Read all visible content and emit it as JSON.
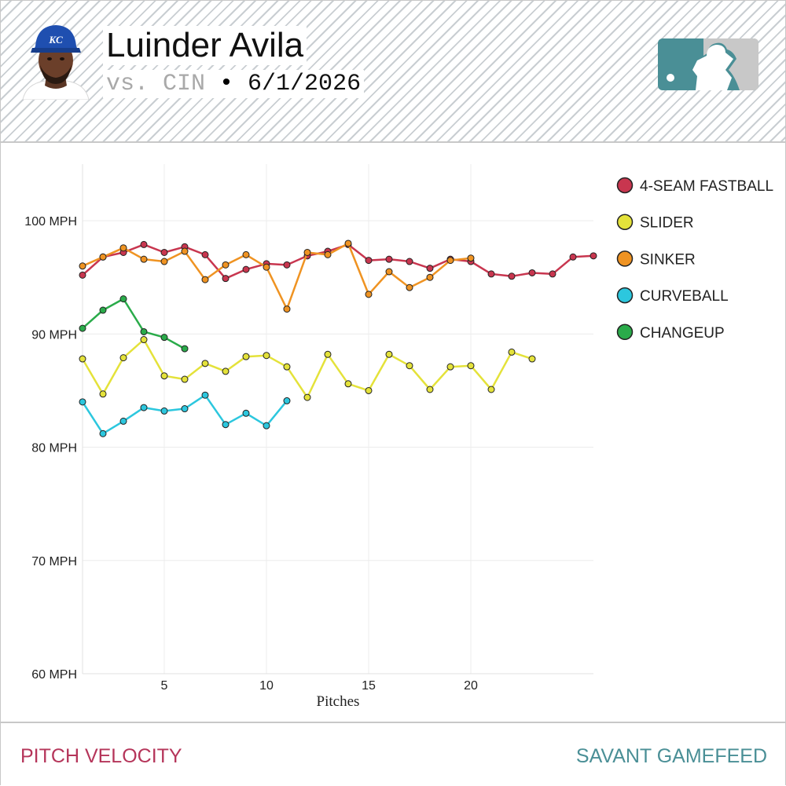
{
  "header": {
    "player_name": "Luinder Avila",
    "opponent": "vs. CIN",
    "separator": " • ",
    "game_date": "6/1/2026",
    "avatar_icon": "player-headshot-kc-cap-icon",
    "logo_icon": "mlb-logo-icon"
  },
  "footer": {
    "left_label": "PITCH VELOCITY",
    "right_label": "SAVANT GAMEFEED"
  },
  "colors": {
    "header_stripe": "#c9ced2",
    "footer_left": "#b5355a",
    "footer_right": "#4a8f96",
    "logo_teal": "#4a8f96",
    "logo_gray": "#c8c8c8"
  },
  "chart_data": {
    "type": "line",
    "xlabel": "Pitches",
    "ylabel": "",
    "xlim": [
      1,
      26
    ],
    "ylim": [
      60,
      105
    ],
    "x_ticks": [
      5,
      10,
      15,
      20
    ],
    "x_tick_labels": [
      "5",
      "10",
      "15",
      "20"
    ],
    "y_ticks": [
      60,
      70,
      80,
      90,
      100
    ],
    "y_tick_labels": [
      "60 MPH",
      "70 MPH",
      "80 MPH",
      "90 MPH",
      "100 MPH"
    ],
    "grid": true,
    "legend_position": "right",
    "series": [
      {
        "name": "4-SEAM FASTBALL",
        "color": "#c8364f",
        "x": [
          1,
          2,
          3,
          4,
          5,
          6,
          7,
          8,
          9,
          10,
          11,
          12,
          13,
          14,
          15,
          16,
          17,
          18,
          19,
          20,
          21,
          22,
          23,
          24,
          25,
          26
        ],
        "values": [
          95.2,
          96.8,
          97.2,
          97.9,
          97.2,
          97.7,
          97.0,
          94.9,
          95.7,
          96.2,
          96.1,
          96.9,
          97.3,
          97.9,
          96.5,
          96.6,
          96.4,
          95.8,
          96.6,
          96.4,
          95.3,
          95.1,
          95.4,
          95.3,
          96.8,
          96.9
        ]
      },
      {
        "name": "SLIDER",
        "color": "#e4e23a",
        "x": [
          1,
          2,
          3,
          4,
          5,
          6,
          7,
          8,
          9,
          10,
          11,
          12,
          13,
          14,
          15,
          16,
          17,
          18,
          19,
          20,
          21,
          22,
          23
        ],
        "values": [
          87.8,
          84.7,
          87.9,
          89.5,
          86.3,
          86.0,
          87.4,
          86.7,
          88.0,
          88.1,
          87.1,
          84.4,
          88.2,
          85.6,
          85.0,
          88.2,
          87.2,
          85.1,
          87.1,
          87.2,
          85.1,
          88.4,
          87.8
        ]
      },
      {
        "name": "SINKER",
        "color": "#ef9322",
        "x": [
          1,
          2,
          3,
          4,
          5,
          6,
          7,
          8,
          9,
          10,
          11,
          12,
          13,
          14,
          15,
          16,
          17,
          18,
          19,
          20
        ],
        "values": [
          96.0,
          96.8,
          97.6,
          96.6,
          96.4,
          97.3,
          94.8,
          96.1,
          97.0,
          95.9,
          92.2,
          97.2,
          97.0,
          98.0,
          93.5,
          95.5,
          94.1,
          95.0,
          96.5,
          96.7
        ]
      },
      {
        "name": "CURVEBALL",
        "color": "#2cc7de",
        "x": [
          1,
          2,
          3,
          4,
          5,
          6,
          7,
          8,
          9,
          10,
          11
        ],
        "values": [
          84.0,
          81.2,
          82.3,
          83.5,
          83.2,
          83.4,
          84.6,
          82.0,
          83.0,
          81.9,
          84.1
        ]
      },
      {
        "name": "CHANGEUP",
        "color": "#2aab4a",
        "x": [
          1,
          2,
          3,
          4,
          5,
          6
        ],
        "values": [
          90.5,
          92.1,
          93.1,
          90.2,
          89.7,
          88.7
        ]
      }
    ]
  }
}
